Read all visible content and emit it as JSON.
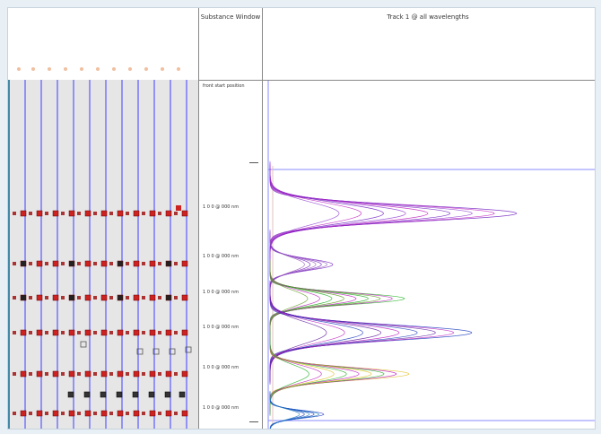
{
  "substance_header": "Substance Window",
  "track_header": "Track 1 @ all wavelengths",
  "front_label": "front start position",
  "substances": [
    {
      "label": "1 0 0 @ 000 nm"
    },
    {
      "label": "1 0 0 @ 000 nm"
    },
    {
      "label": "1 0 0 @ 000 nm"
    },
    {
      "label": "1 0 0 @ 000 nm"
    },
    {
      "label": "1 0 0 @ 000 nm"
    },
    {
      "label": "1 0 0 @ 000 nm"
    }
  ],
  "lane_count": 11,
  "colors": {
    "lane_line": "#5a5aff",
    "spot": "#cc2222",
    "guide": "#8888ff",
    "peak_magenta": "#c020c0",
    "peak_purple": "#7020c0",
    "peak_green": "#20b020",
    "peak_blue": "#2040c0"
  }
}
